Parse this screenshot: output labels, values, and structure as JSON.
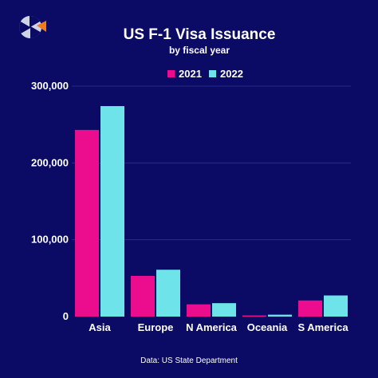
{
  "colors": {
    "background": "#0b0a64",
    "series_2021": "#ec0d8f",
    "series_2022": "#6fe3ea",
    "grid": "#2a2a8a",
    "logo_accent": "#f07a1e",
    "logo_light": "#cfd3e6"
  },
  "logo": {
    "icon": "segmented-circle-logo-icon"
  },
  "source": "Data: US State Department",
  "chart_data": {
    "type": "bar",
    "title": "US F-1 Visa Issuance",
    "subtitle": "by fiscal year",
    "xlabel": "",
    "ylabel": "",
    "categories": [
      "Asia",
      "Europe",
      "N America",
      "Oceania",
      "S America"
    ],
    "series": [
      {
        "name": "2021",
        "values": [
          243000,
          53000,
          16000,
          1500,
          21000
        ]
      },
      {
        "name": "2022",
        "values": [
          274000,
          61000,
          17500,
          2500,
          27500
        ]
      }
    ],
    "ylim": [
      0,
      300000
    ],
    "yticks": [
      0,
      100000,
      200000,
      300000
    ],
    "ytick_labels": [
      "0",
      "100,000",
      "200,000",
      "300,000"
    ],
    "grid": true,
    "legend": "top-center"
  }
}
